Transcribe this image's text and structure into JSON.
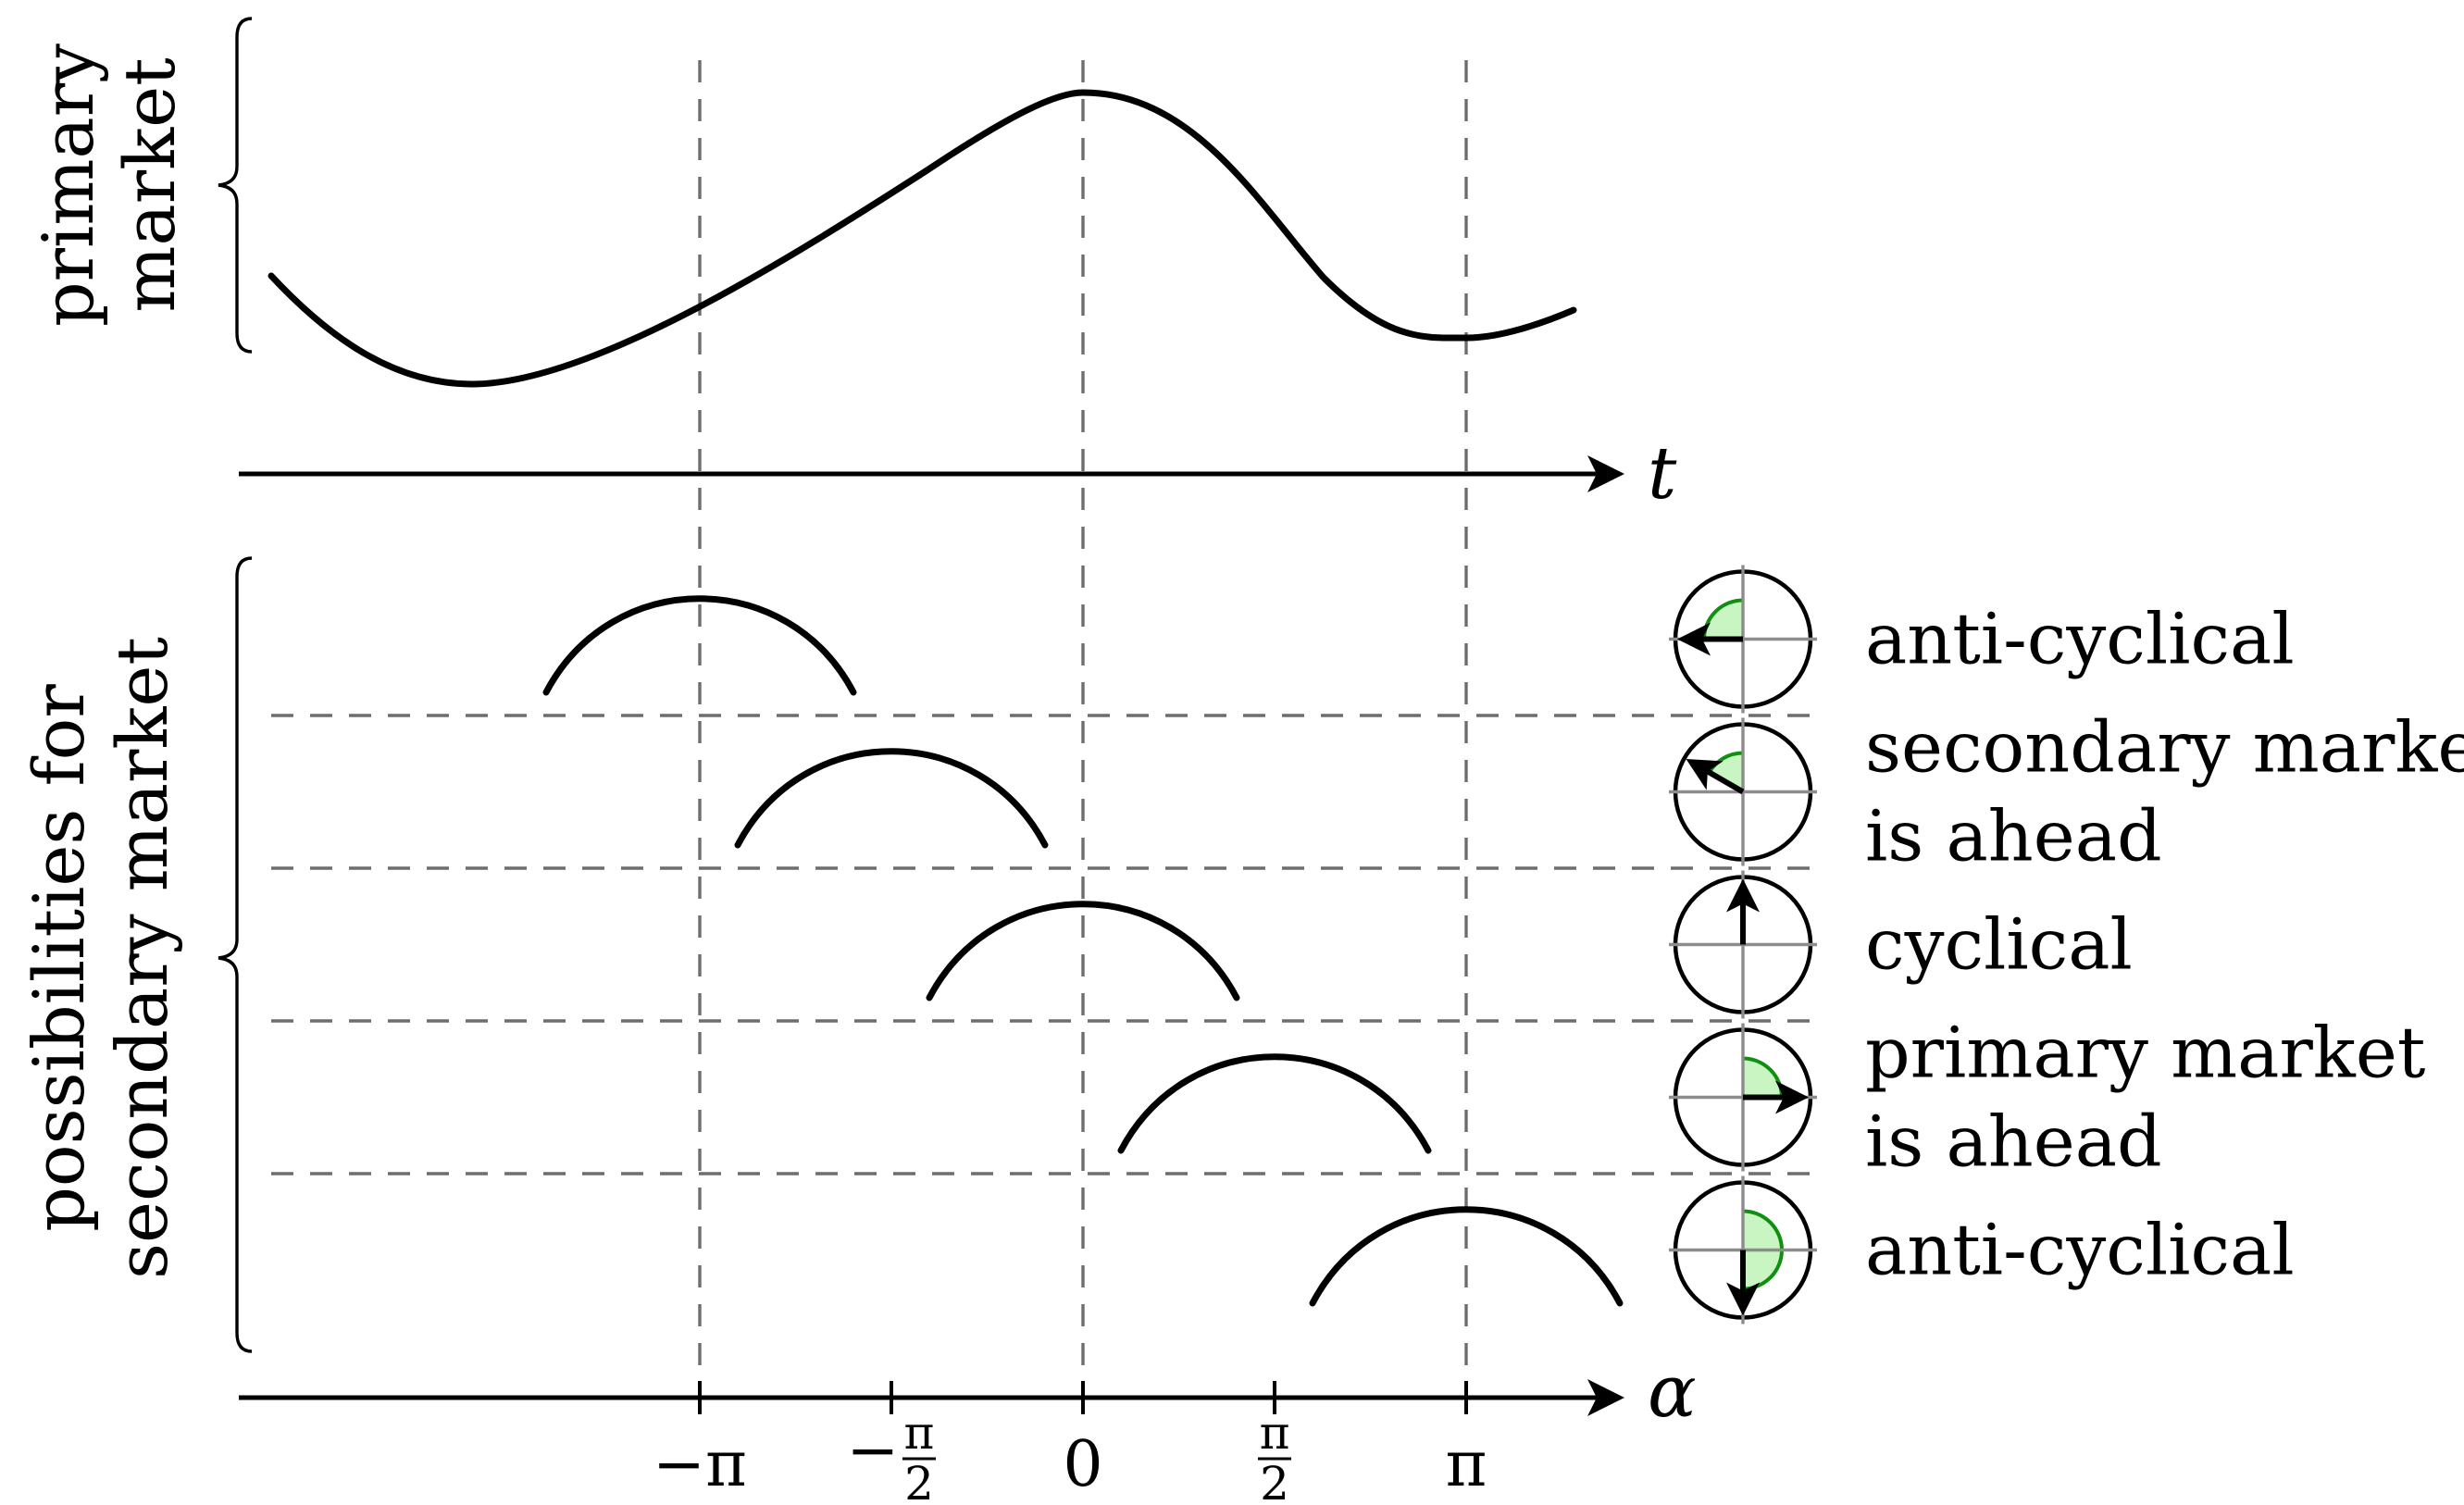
{
  "labels": {
    "primary_line1": "primary",
    "primary_line2": "market",
    "secondary_line1": "possibilities for",
    "secondary_line2": "secondary market"
  },
  "axes": {
    "t_label": "t",
    "alpha_label": "α",
    "alpha_ticks": [
      {
        "kind": "text",
        "text": "−π",
        "value": -3.14159
      },
      {
        "kind": "frac",
        "sign": "−",
        "num": "π",
        "den": "2",
        "value": -1.5708
      },
      {
        "kind": "text",
        "text": "0",
        "value": 0
      },
      {
        "kind": "frac",
        "sign": "",
        "num": "π",
        "den": "2",
        "value": 1.5708
      },
      {
        "kind": "text",
        "text": "π",
        "value": 3.14159
      }
    ]
  },
  "rows": [
    {
      "alpha": -3.14159,
      "angle_deg": 180,
      "label_lines": [
        "anti-cyclical"
      ]
    },
    {
      "alpha": -1.5708,
      "angle_deg": 150,
      "label_lines": [
        "secondary market",
        "is ahead"
      ]
    },
    {
      "alpha": 0,
      "angle_deg": 90,
      "label_lines": [
        "cyclical"
      ]
    },
    {
      "alpha": 1.5708,
      "angle_deg": 0,
      "label_lines": [
        "primary market",
        "is ahead"
      ]
    },
    {
      "alpha": 3.14159,
      "angle_deg": -90,
      "label_lines": [
        "anti-cyclical"
      ]
    }
  ],
  "colors": {
    "sector_fill": "#c8f5c2",
    "sector_arc": "#109010",
    "dashed": "#6e6e6e",
    "cross": "#8c8c8c"
  }
}
